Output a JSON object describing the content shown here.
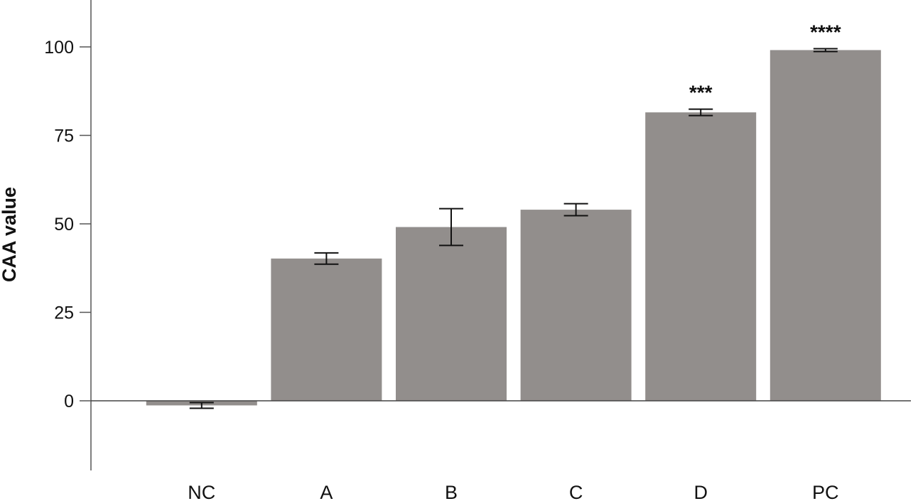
{
  "chart_data": {
    "type": "bar",
    "categories": [
      "NC",
      "A",
      "B",
      "C",
      "D",
      "PC"
    ],
    "values": [
      -1.3,
      40.2,
      49.1,
      54.0,
      81.5,
      99.1
    ],
    "error": [
      0.8,
      1.6,
      5.2,
      1.7,
      0.9,
      0.4
    ],
    "significance": [
      "",
      "",
      "",
      "",
      "***",
      "****"
    ],
    "title": "",
    "xlabel": "",
    "ylabel": "CAA value",
    "ylim": [
      -20,
      112
    ],
    "yticks": [
      0,
      25,
      50,
      75,
      100
    ],
    "grid": false,
    "legend": "none",
    "colors": {
      "bar": "#928e8c",
      "error": "#111111",
      "axis": "#555555"
    }
  }
}
